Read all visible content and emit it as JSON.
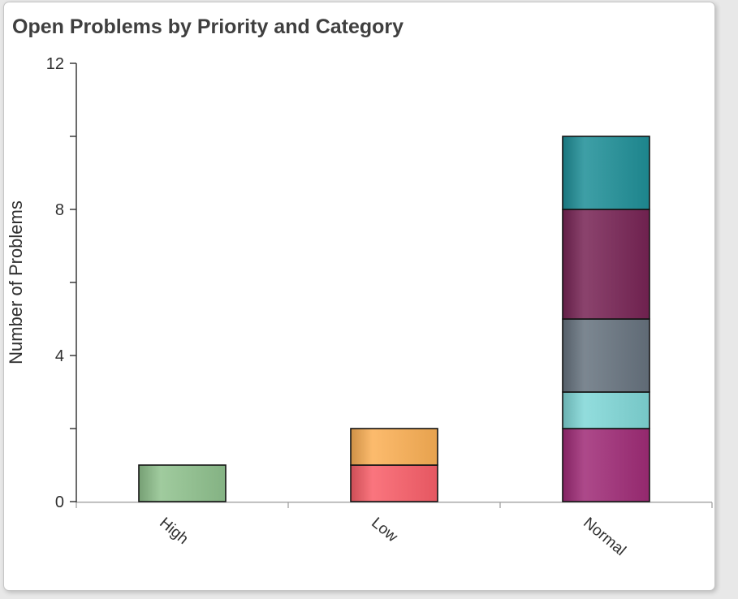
{
  "page": {
    "background_color": "#e8e8e8",
    "card_background_color": "#ffffff",
    "card_border_color": "#c6c6c6"
  },
  "chart_data": {
    "type": "bar",
    "stacked": true,
    "title": "Open Problems by Priority and Category",
    "xlabel": "",
    "ylabel": "Number of Problems",
    "categories": [
      "High",
      "Low",
      "Normal"
    ],
    "ylim": [
      0,
      12
    ],
    "ytick_labeled": [
      0,
      4,
      8,
      12
    ],
    "ytick_minor_interval": 2,
    "grid": false,
    "legend_position": "none",
    "x_label_rotation_deg": 40,
    "totals": [
      1,
      2,
      10
    ],
    "stacks": [
      {
        "category": "High",
        "segments": [
          {
            "value": 1,
            "color": "#90c28e"
          }
        ]
      },
      {
        "category": "Low",
        "segments": [
          {
            "value": 1,
            "color": "#f95f69"
          },
          {
            "value": 1,
            "color": "#fbb055"
          }
        ]
      },
      {
        "category": "Normal",
        "segments": [
          {
            "value": 2,
            "color": "#a02b77"
          },
          {
            "value": 1,
            "color": "#80d7d7"
          },
          {
            "value": 2,
            "color": "#67737f"
          },
          {
            "value": 3,
            "color": "#782455"
          },
          {
            "value": 2,
            "color": "#1f8f98"
          }
        ]
      }
    ],
    "colors": {
      "y_axis": "#3a3a3a",
      "x_axis": "#a8a8a8",
      "tick_label": "#2f2f2f",
      "title": "#3f3f3f",
      "bar_border": "#141414"
    }
  }
}
